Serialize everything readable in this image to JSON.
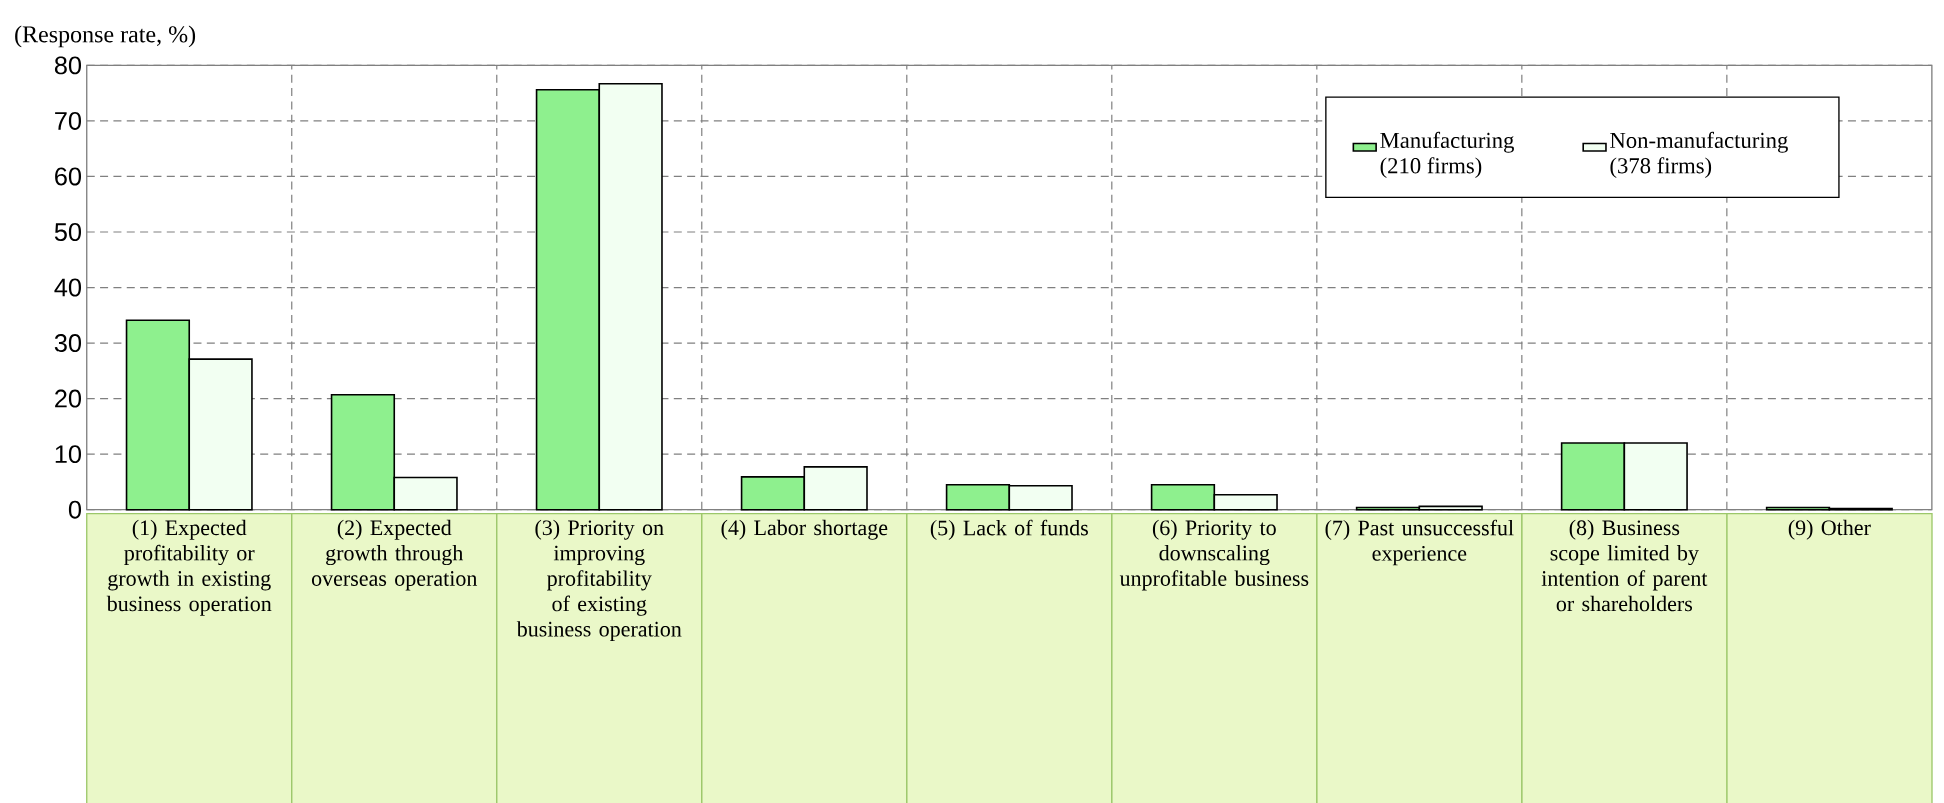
{
  "chart_data": {
    "type": "bar",
    "ylabel": "(Response rate, %)",
    "categories": [
      "(1) Expected profitability or growth in existing business operation",
      "(2) Expected growth through overseas operation",
      "(3) Priority on improving profitability of existing business operation",
      "(4) Labor shortage",
      "(5) Lack of funds",
      "(6) Priority to downscaling unprofitable business",
      "(7) Past unsuccessful experience",
      "(8) Business scope limited by intention of parent or shareholders",
      "(9) Other"
    ],
    "series": [
      {
        "name": "Manufacturing (210 firms)",
        "color": "#8ef08e",
        "values": [
          34.1,
          20.7,
          75.6,
          5.9,
          4.5,
          4.5,
          0.4,
          12.0,
          0.4
        ]
      },
      {
        "name": "Non-manufacturing (378 firms)",
        "color": "#f2fff2",
        "values": [
          27.1,
          5.8,
          76.7,
          7.7,
          4.3,
          2.7,
          0.6,
          12.0,
          0.2
        ]
      }
    ],
    "ylim": [
      0,
      80
    ],
    "yticks": [
      0,
      10,
      20,
      30,
      40,
      50,
      60,
      70,
      80
    ],
    "grid": true,
    "legend": "top right"
  }
}
